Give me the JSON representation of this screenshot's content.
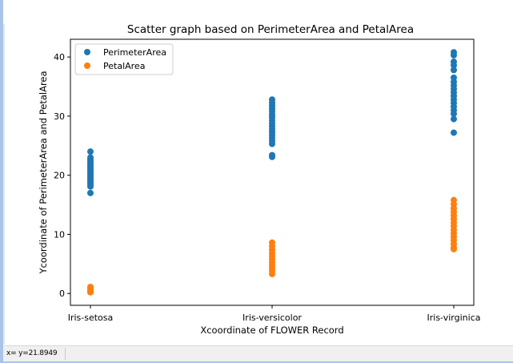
{
  "statusbar": {
    "coord_text": "x= y=21.8949"
  },
  "colors": {
    "perimeter": "#1f77b4",
    "petal": "#ff7f0e"
  },
  "chart_data": {
    "type": "scatter",
    "title": "Scatter graph based on PerimeterArea and PetalArea",
    "xlabel": "Xcoordinate of FLOWER Record",
    "ylabel": "Ycoordinate of PerimeterArea and PetalArea",
    "categories": [
      "Iris-setosa",
      "Iris-versicolor",
      "Iris-virginica"
    ],
    "ylim": [
      -2,
      43
    ],
    "yticks": [
      0,
      10,
      20,
      30,
      40
    ],
    "legend": "top-left",
    "grid": false,
    "series": [
      {
        "name": "PerimeterArea",
        "color": "#1f77b4",
        "values": [
          [
            24.0,
            23.0,
            22.6,
            22.2,
            22.0,
            21.7,
            21.4,
            21.1,
            20.8,
            20.5,
            20.2,
            19.9,
            19.6,
            19.3,
            19.0,
            18.7,
            18.4,
            18.1,
            17.0
          ],
          [
            32.8,
            32.3,
            31.8,
            31.3,
            30.8,
            30.3,
            29.8,
            29.3,
            28.8,
            28.3,
            27.8,
            27.3,
            26.8,
            26.3,
            25.8,
            25.3,
            23.4,
            23.1
          ],
          [
            40.8,
            40.3,
            39.2,
            38.6,
            37.8,
            36.5,
            35.8,
            35.2,
            34.6,
            34.0,
            33.4,
            32.8,
            32.2,
            31.6,
            31.0,
            30.4,
            29.5,
            27.2
          ]
        ]
      },
      {
        "name": "PetalArea",
        "color": "#ff7f0e",
        "values": [
          [
            1.1,
            0.9,
            0.7,
            0.5,
            0.4,
            0.3,
            0.2
          ],
          [
            8.6,
            8.0,
            7.4,
            6.8,
            6.3,
            5.8,
            5.3,
            4.8,
            4.3,
            3.8,
            3.3
          ],
          [
            15.8,
            15.1,
            14.4,
            13.8,
            13.2,
            12.6,
            12.0,
            11.4,
            10.8,
            10.2,
            9.6,
            9.0,
            8.4,
            7.8,
            7.5
          ]
        ]
      }
    ]
  }
}
